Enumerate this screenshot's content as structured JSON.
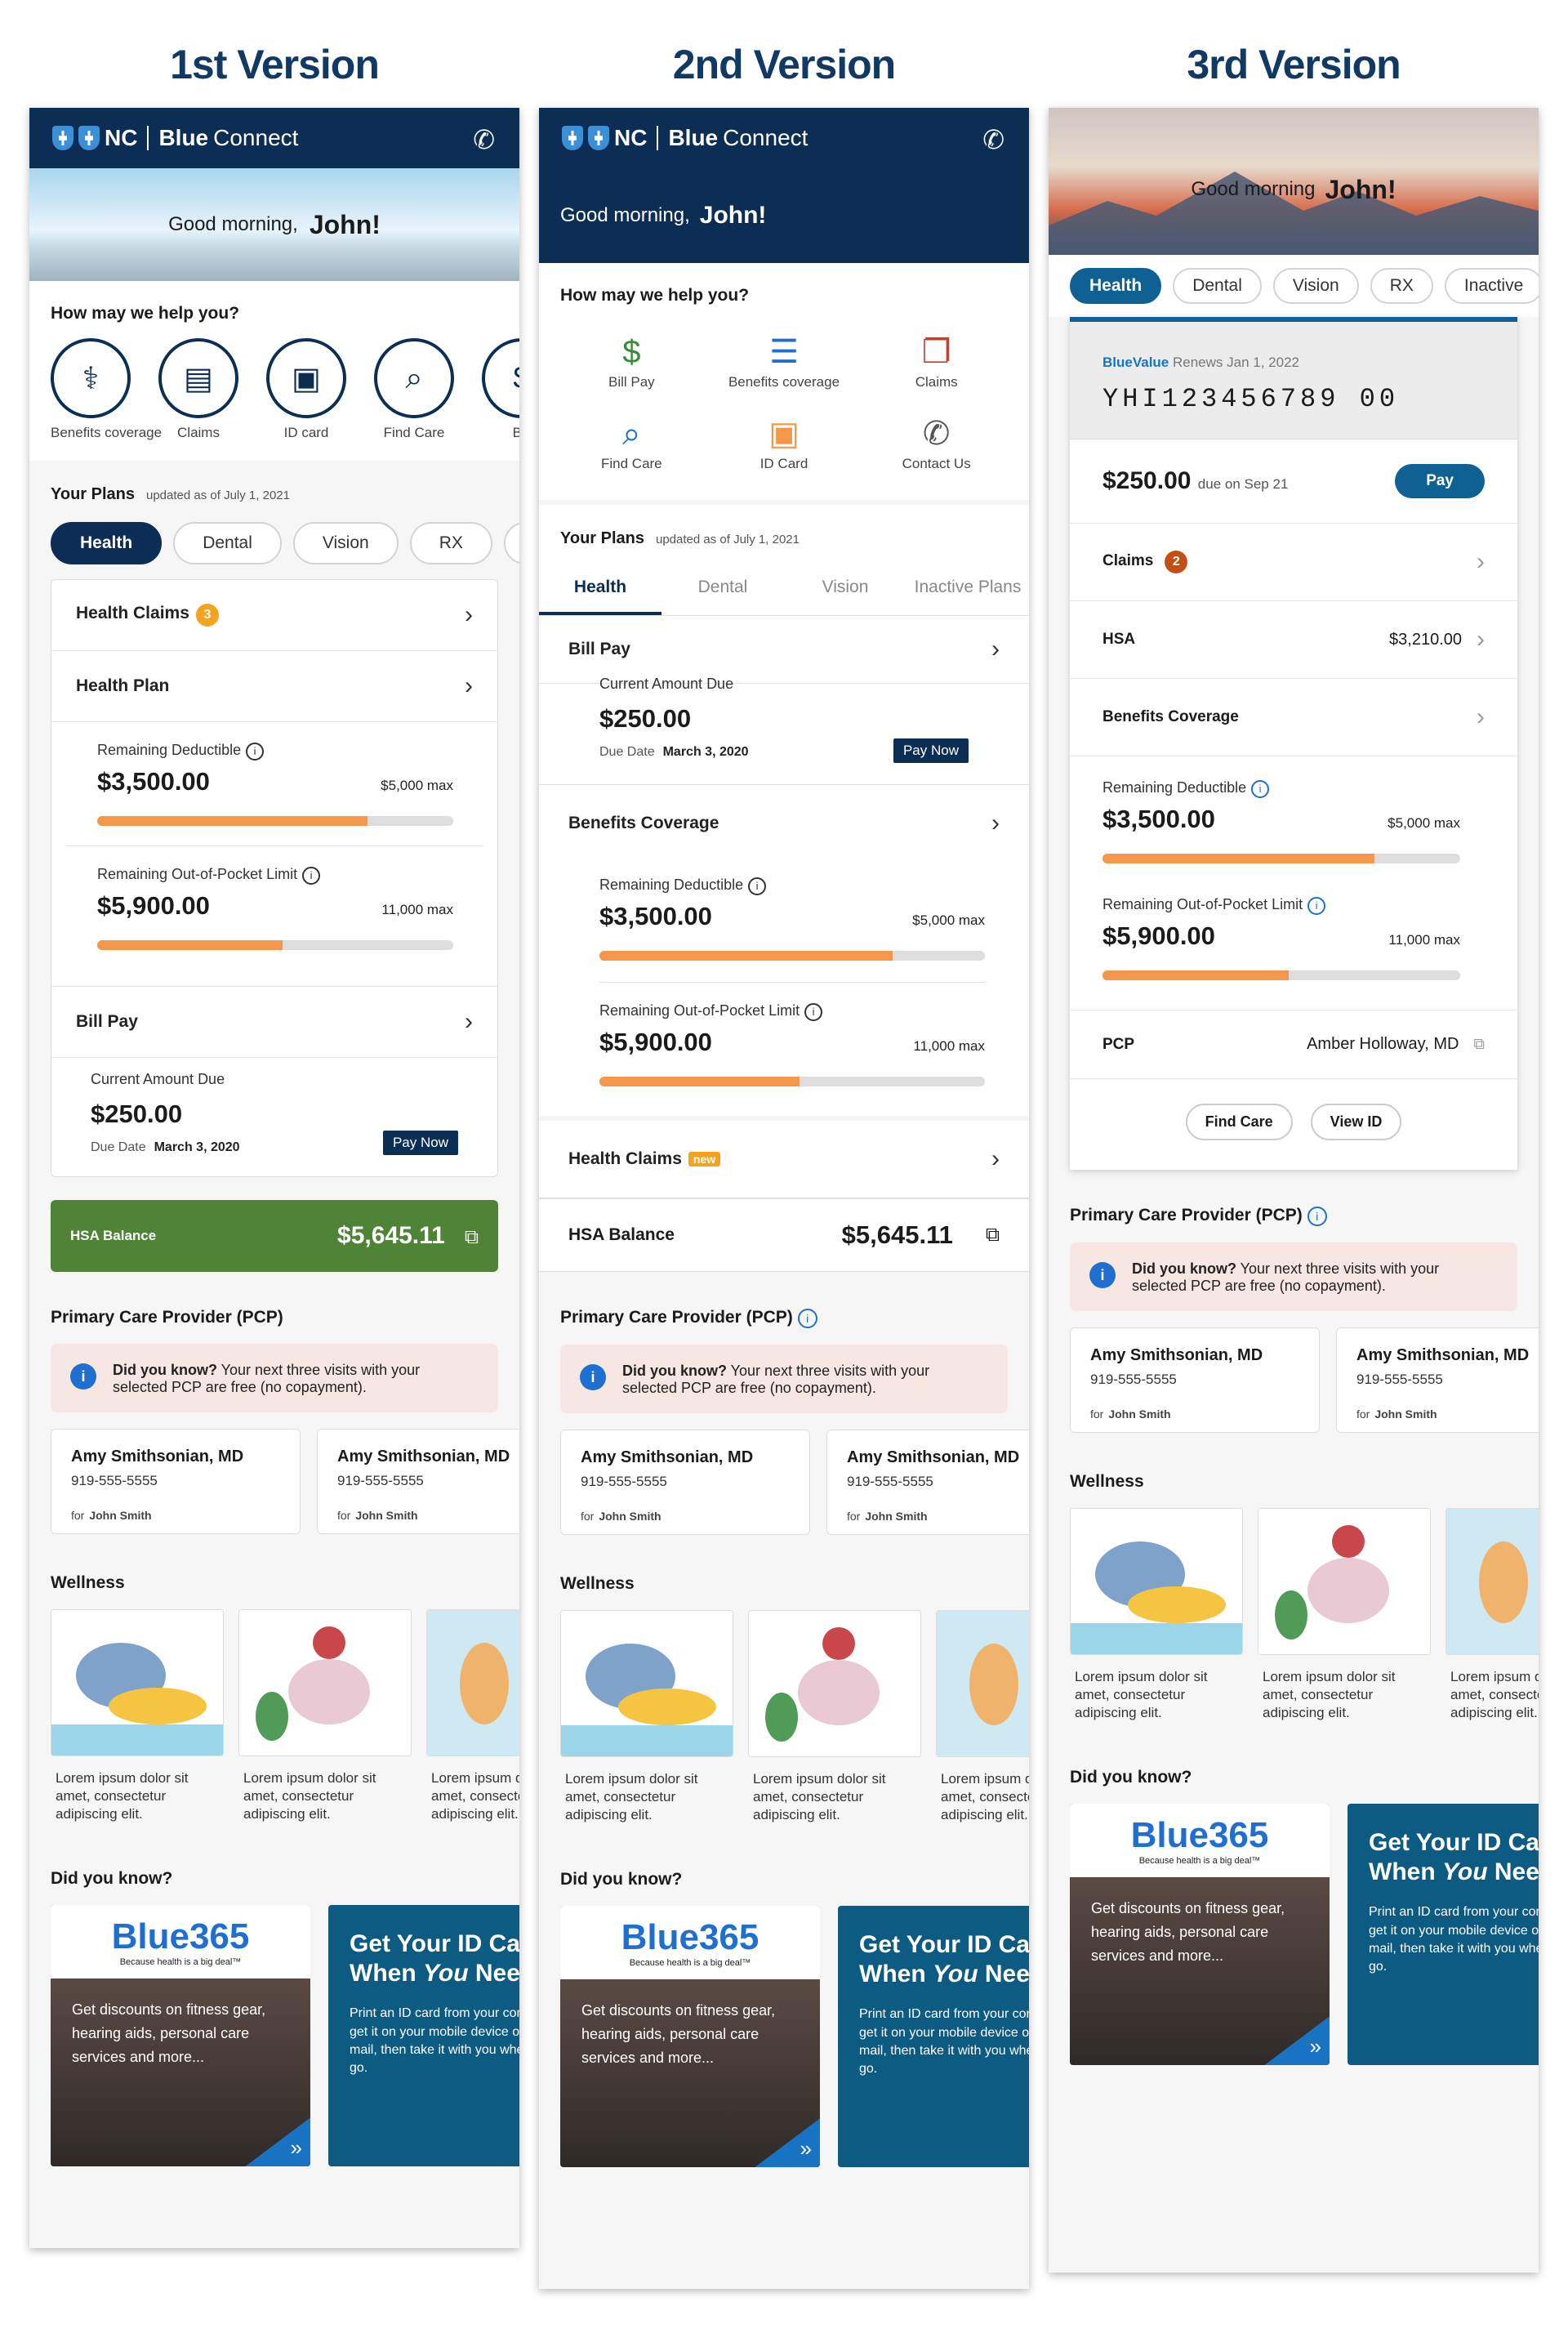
{
  "titles": [
    "1st Version",
    "2nd Version",
    "3rd Version"
  ],
  "brand": {
    "nc": "NC",
    "blue": "Blue",
    "connect": "Connect"
  },
  "greeting": {
    "text": "Good morning,",
    "text3": "Good morning",
    "name": "John!"
  },
  "help_title": "How may we help you?",
  "v1_actions": [
    "Benefits coverage",
    "Claims",
    "ID card",
    "Find Care",
    "Bill"
  ],
  "v2_actions": [
    "Bill Pay",
    "Benefits coverage",
    "Claims",
    "Find Care",
    "ID Card",
    "Contact Us"
  ],
  "plans": {
    "title": "Your Plans",
    "updated": "updated as of",
    "date": "July 1, 2021"
  },
  "v1_tabs": [
    "Health",
    "Dental",
    "Vision",
    "RX"
  ],
  "v2_tabs": [
    "Health",
    "Dental",
    "Vision",
    "Inactive Plans"
  ],
  "v3_tabs": [
    "Health",
    "Dental",
    "Vision",
    "RX",
    "Inactive"
  ],
  "health_claims": "Health Claims",
  "claims_count": "3",
  "health_plan": "Health Plan",
  "deductible": {
    "label": "Remaining Deductible",
    "value": "$3,500.00",
    "max": "$5,000 max",
    "fill": 0.76
  },
  "oop": {
    "label": "Remaining Out-of-Pocket Limit",
    "value": "$5,900.00",
    "max": "11,000 max",
    "fill": 0.52
  },
  "bill": {
    "title": "Bill Pay",
    "label": "Current Amount Due",
    "amount": "$250.00",
    "due_label": "Due Date",
    "due_date": "March 3, 2020",
    "pay": "Pay Now"
  },
  "benefits_coverage": "Benefits Coverage",
  "new_badge": "new",
  "hsa": {
    "label": "HSA Balance",
    "amount": "$5,645.11"
  },
  "pcp": {
    "title": "Primary Care Provider (PCP)",
    "dyk_bold": "Did you know?",
    "dyk_text": " Your next three visits with your selected PCP are free (no copayment).",
    "providers": [
      {
        "name": "Amy Smithsonian, MD",
        "phone": "919-555-5555",
        "for": "for",
        "who": "John Smith"
      },
      {
        "name": "Amy Smithsonian, MD",
        "phone": "919-555-5555",
        "for": "for",
        "who": "John Smith"
      }
    ]
  },
  "wellness": {
    "title": "Wellness",
    "text": "Lorem ipsum dolor sit amet, consectetur adipiscing elit."
  },
  "did_you_know": "Did you know?",
  "blue365": {
    "logo": "Blue365",
    "tag": "Because health is a big deal™",
    "text": "Get discounts on fitness gear, hearing aids, personal care services and more..."
  },
  "idcard": {
    "title_a": "Get Your ID Card When ",
    "title_you": "You",
    "title_b": " Need It",
    "text": "Print an ID card from your computer, get it on your mobile device or in the mail, then take it with you where you go."
  },
  "v3": {
    "plan": "BlueValue",
    "renews": "Renews Jan 1, 2022",
    "member_id": "YHI123456789 00",
    "amount": "$250.00",
    "due_on": "due on Sep 21",
    "pay": "Pay",
    "claims": "Claims",
    "claims_count": "2",
    "hsa": "HSA",
    "hsa_value": "$3,210.00",
    "benefits": "Benefits Coverage",
    "deductible_max": "$5,000 max",
    "oop_max": "11,000 max",
    "pcp_label": "PCP",
    "pcp_name": "Amber Holloway, MD",
    "find_care": "Find Care",
    "view_id": "View ID"
  },
  "colors": {
    "navy": "#0c2e55",
    "orange": "#f5974a",
    "green": "#4f8335",
    "teal": "#0e6192"
  }
}
